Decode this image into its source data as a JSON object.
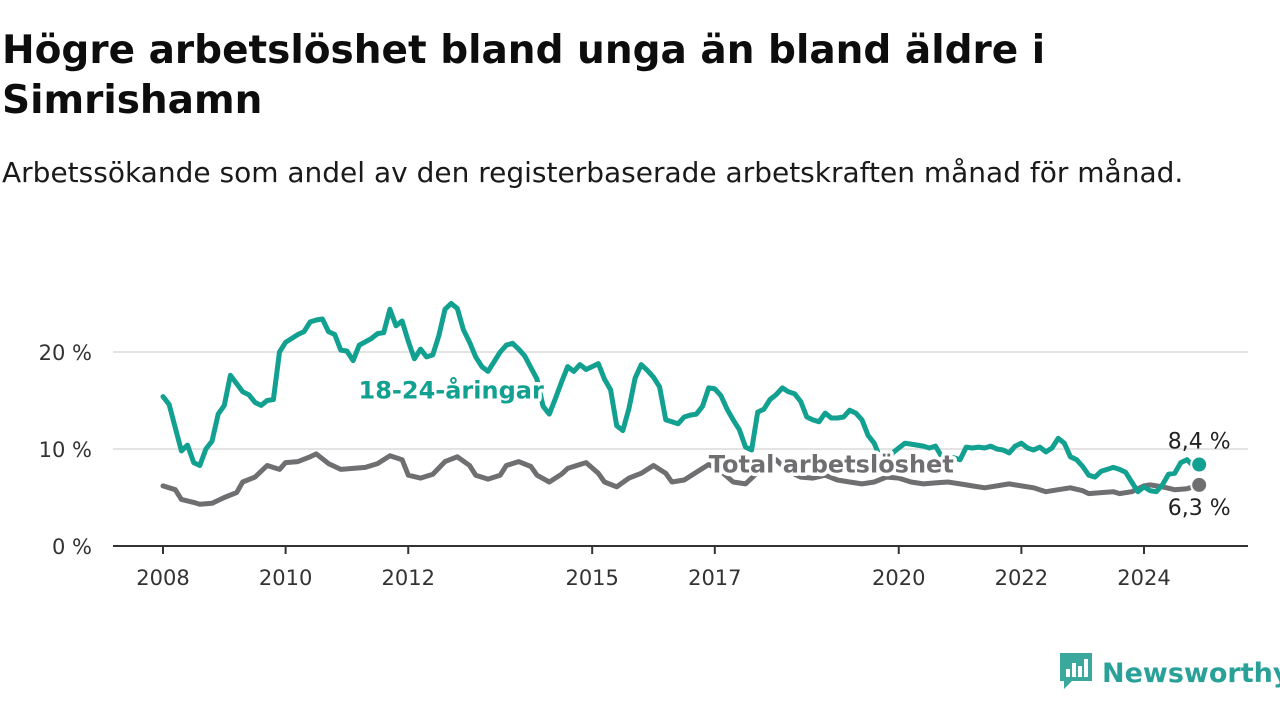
{
  "title": "Högre arbetslöshet bland unga än bland äldre i Simrishamn",
  "subtitle": "Arbetssökande som andel av den registerbaserade arbetskraften månad för månad.",
  "brand": {
    "name": "Newsworthy",
    "color": "#3aa89c",
    "icon": "bar-chart-badge-icon"
  },
  "chart_data": {
    "type": "line",
    "xlim": [
      2007.9,
      2025.1
    ],
    "ylim": [
      0,
      21
    ],
    "grid": "horizontal",
    "x_ticks": [
      {
        "value": 2008,
        "label": "2008"
      },
      {
        "value": 2010,
        "label": "2010"
      },
      {
        "value": 2012,
        "label": "2012"
      },
      {
        "value": 2015,
        "label": "2015"
      },
      {
        "value": 2017,
        "label": "2017"
      },
      {
        "value": 2020,
        "label": "2020"
      },
      {
        "value": 2022,
        "label": "2022"
      },
      {
        "value": 2024,
        "label": "2024"
      }
    ],
    "y_ticks": [
      {
        "value": 0,
        "label": "0 %"
      },
      {
        "value": 10,
        "label": "10 %"
      },
      {
        "value": 20,
        "label": "20 %"
      }
    ],
    "series": [
      {
        "name": "18-24-åringar",
        "color": "#12a090",
        "label_at": [
          2012.7,
          15.2
        ],
        "end_label": "8,4 %",
        "points": [
          [
            2008.0,
            15.4
          ],
          [
            2008.1,
            14.6
          ],
          [
            2008.3,
            9.8
          ],
          [
            2008.4,
            10.4
          ],
          [
            2008.5,
            8.6
          ],
          [
            2008.6,
            8.3
          ],
          [
            2008.7,
            10.0
          ],
          [
            2008.8,
            10.8
          ],
          [
            2008.9,
            13.6
          ],
          [
            2009.0,
            14.5
          ],
          [
            2009.1,
            17.6
          ],
          [
            2009.3,
            15.9
          ],
          [
            2009.4,
            15.6
          ],
          [
            2009.5,
            14.8
          ],
          [
            2009.6,
            14.5
          ],
          [
            2009.7,
            15.0
          ],
          [
            2009.8,
            15.1
          ],
          [
            2009.9,
            20.0
          ],
          [
            2010.0,
            21.0
          ],
          [
            2010.2,
            21.8
          ],
          [
            2010.3,
            22.1
          ],
          [
            2010.4,
            23.1
          ],
          [
            2010.5,
            23.3
          ],
          [
            2010.6,
            23.4
          ],
          [
            2010.7,
            22.1
          ],
          [
            2010.8,
            21.8
          ],
          [
            2010.9,
            20.2
          ],
          [
            2011.0,
            20.1
          ],
          [
            2011.1,
            19.1
          ],
          [
            2011.2,
            20.7
          ],
          [
            2011.4,
            21.4
          ],
          [
            2011.5,
            21.9
          ],
          [
            2011.6,
            22.0
          ],
          [
            2011.7,
            24.4
          ],
          [
            2011.8,
            22.7
          ],
          [
            2011.9,
            23.2
          ],
          [
            2012.0,
            21.1
          ],
          [
            2012.1,
            19.3
          ],
          [
            2012.2,
            20.3
          ],
          [
            2012.3,
            19.5
          ],
          [
            2012.4,
            19.7
          ],
          [
            2012.5,
            21.7
          ],
          [
            2012.6,
            24.4
          ],
          [
            2012.7,
            25.0
          ],
          [
            2012.8,
            24.5
          ],
          [
            2012.9,
            22.3
          ],
          [
            2013.0,
            21.0
          ],
          [
            2013.1,
            19.5
          ],
          [
            2013.2,
            18.5
          ],
          [
            2013.3,
            18.0
          ],
          [
            2013.5,
            20.0
          ],
          [
            2013.6,
            20.7
          ],
          [
            2013.7,
            20.9
          ],
          [
            2013.8,
            20.3
          ],
          [
            2013.9,
            19.6
          ],
          [
            2014.1,
            17.2
          ],
          [
            2014.2,
            14.4
          ],
          [
            2014.3,
            13.6
          ],
          [
            2014.4,
            15.2
          ],
          [
            2014.5,
            16.9
          ],
          [
            2014.6,
            18.5
          ],
          [
            2014.7,
            18.0
          ],
          [
            2014.8,
            18.7
          ],
          [
            2014.9,
            18.2
          ],
          [
            2015.0,
            18.5
          ],
          [
            2015.1,
            18.8
          ],
          [
            2015.2,
            17.2
          ],
          [
            2015.3,
            16.1
          ],
          [
            2015.4,
            12.4
          ],
          [
            2015.5,
            11.9
          ],
          [
            2015.6,
            14.2
          ],
          [
            2015.7,
            17.3
          ],
          [
            2015.8,
            18.7
          ],
          [
            2015.9,
            18.1
          ],
          [
            2016.0,
            17.4
          ],
          [
            2016.1,
            16.4
          ],
          [
            2016.2,
            13.0
          ],
          [
            2016.3,
            12.8
          ],
          [
            2016.4,
            12.6
          ],
          [
            2016.5,
            13.3
          ],
          [
            2016.6,
            13.5
          ],
          [
            2016.7,
            13.6
          ],
          [
            2016.8,
            14.4
          ],
          [
            2016.9,
            16.3
          ],
          [
            2017.0,
            16.2
          ],
          [
            2017.1,
            15.5
          ],
          [
            2017.2,
            14.1
          ],
          [
            2017.3,
            13.0
          ],
          [
            2017.4,
            12.0
          ],
          [
            2017.5,
            10.2
          ],
          [
            2017.6,
            9.9
          ],
          [
            2017.7,
            13.8
          ],
          [
            2017.8,
            14.1
          ],
          [
            2017.9,
            15.1
          ],
          [
            2018.0,
            15.6
          ],
          [
            2018.1,
            16.3
          ],
          [
            2018.2,
            15.9
          ],
          [
            2018.3,
            15.7
          ],
          [
            2018.4,
            14.9
          ],
          [
            2018.5,
            13.3
          ],
          [
            2018.6,
            13.0
          ],
          [
            2018.7,
            12.8
          ],
          [
            2018.8,
            13.7
          ],
          [
            2018.9,
            13.2
          ],
          [
            2019.0,
            13.2
          ],
          [
            2019.1,
            13.3
          ],
          [
            2019.2,
            14.0
          ],
          [
            2019.3,
            13.7
          ],
          [
            2019.4,
            13.0
          ],
          [
            2019.5,
            11.4
          ],
          [
            2019.6,
            10.6
          ],
          [
            2019.7,
            9.0
          ],
          [
            2019.8,
            8.5
          ],
          [
            2019.9,
            9.6
          ],
          [
            2020.0,
            10.1
          ],
          [
            2020.1,
            10.6
          ],
          [
            2020.2,
            10.5
          ],
          [
            2020.3,
            10.4
          ],
          [
            2020.4,
            10.3
          ],
          [
            2020.5,
            10.1
          ],
          [
            2020.6,
            10.3
          ],
          [
            2020.7,
            9.2
          ],
          [
            2020.8,
            9.0
          ],
          [
            2020.9,
            9.1
          ],
          [
            2021.0,
            8.9
          ],
          [
            2021.1,
            10.2
          ],
          [
            2021.2,
            10.1
          ],
          [
            2021.3,
            10.2
          ],
          [
            2021.4,
            10.1
          ],
          [
            2021.5,
            10.3
          ],
          [
            2021.6,
            10.0
          ],
          [
            2021.7,
            9.9
          ],
          [
            2021.8,
            9.6
          ],
          [
            2021.9,
            10.3
          ],
          [
            2022.0,
            10.6
          ],
          [
            2022.1,
            10.1
          ],
          [
            2022.2,
            9.9
          ],
          [
            2022.3,
            10.2
          ],
          [
            2022.4,
            9.7
          ],
          [
            2022.5,
            10.1
          ],
          [
            2022.6,
            11.1
          ],
          [
            2022.7,
            10.6
          ],
          [
            2022.8,
            9.2
          ],
          [
            2022.9,
            8.9
          ],
          [
            2023.0,
            8.2
          ],
          [
            2023.1,
            7.3
          ],
          [
            2023.2,
            7.1
          ],
          [
            2023.3,
            7.7
          ],
          [
            2023.4,
            7.9
          ],
          [
            2023.5,
            8.1
          ],
          [
            2023.6,
            7.9
          ],
          [
            2023.7,
            7.6
          ],
          [
            2023.8,
            6.6
          ],
          [
            2023.9,
            5.6
          ],
          [
            2024.0,
            6.1
          ],
          [
            2024.1,
            5.7
          ],
          [
            2024.2,
            5.6
          ],
          [
            2024.3,
            6.3
          ],
          [
            2024.4,
            7.4
          ],
          [
            2024.5,
            7.5
          ],
          [
            2024.6,
            8.6
          ],
          [
            2024.7,
            8.9
          ],
          [
            2024.8,
            8.3
          ],
          [
            2024.9,
            8.4
          ]
        ]
      },
      {
        "name": "Total arbetslöshet",
        "color": "#6f6f72",
        "label_at": [
          2018.9,
          7.6
        ],
        "end_label": "6,3 %",
        "points": [
          [
            2008.0,
            6.2
          ],
          [
            2008.2,
            5.8
          ],
          [
            2008.3,
            4.8
          ],
          [
            2008.5,
            4.5
          ],
          [
            2008.6,
            4.3
          ],
          [
            2008.8,
            4.4
          ],
          [
            2008.9,
            4.7
          ],
          [
            2009.0,
            5.0
          ],
          [
            2009.2,
            5.5
          ],
          [
            2009.3,
            6.6
          ],
          [
            2009.5,
            7.1
          ],
          [
            2009.7,
            8.3
          ],
          [
            2009.9,
            7.9
          ],
          [
            2010.0,
            8.6
          ],
          [
            2010.2,
            8.7
          ],
          [
            2010.4,
            9.2
          ],
          [
            2010.5,
            9.5
          ],
          [
            2010.7,
            8.5
          ],
          [
            2010.9,
            7.9
          ],
          [
            2011.1,
            8.0
          ],
          [
            2011.3,
            8.1
          ],
          [
            2011.5,
            8.5
          ],
          [
            2011.7,
            9.3
          ],
          [
            2011.9,
            8.9
          ],
          [
            2012.0,
            7.3
          ],
          [
            2012.2,
            7.0
          ],
          [
            2012.4,
            7.4
          ],
          [
            2012.6,
            8.7
          ],
          [
            2012.8,
            9.2
          ],
          [
            2013.0,
            8.3
          ],
          [
            2013.1,
            7.3
          ],
          [
            2013.3,
            6.9
          ],
          [
            2013.5,
            7.3
          ],
          [
            2013.6,
            8.3
          ],
          [
            2013.8,
            8.7
          ],
          [
            2014.0,
            8.2
          ],
          [
            2014.1,
            7.3
          ],
          [
            2014.3,
            6.6
          ],
          [
            2014.5,
            7.4
          ],
          [
            2014.6,
            8.0
          ],
          [
            2014.8,
            8.4
          ],
          [
            2014.9,
            8.6
          ],
          [
            2015.1,
            7.5
          ],
          [
            2015.2,
            6.6
          ],
          [
            2015.4,
            6.1
          ],
          [
            2015.6,
            7.0
          ],
          [
            2015.8,
            7.5
          ],
          [
            2016.0,
            8.3
          ],
          [
            2016.2,
            7.5
          ],
          [
            2016.3,
            6.6
          ],
          [
            2016.5,
            6.8
          ],
          [
            2016.7,
            7.6
          ],
          [
            2016.9,
            8.4
          ],
          [
            2017.1,
            7.7
          ],
          [
            2017.3,
            6.6
          ],
          [
            2017.5,
            6.4
          ],
          [
            2017.7,
            7.6
          ],
          [
            2017.9,
            8.3
          ],
          [
            2018.0,
            8.9
          ],
          [
            2018.2,
            7.7
          ],
          [
            2018.4,
            7.1
          ],
          [
            2018.6,
            7.0
          ],
          [
            2018.8,
            7.3
          ],
          [
            2019.0,
            6.8
          ],
          [
            2019.2,
            6.6
          ],
          [
            2019.4,
            6.4
          ],
          [
            2019.6,
            6.6
          ],
          [
            2019.8,
            7.1
          ],
          [
            2020.0,
            7.0
          ],
          [
            2020.2,
            6.6
          ],
          [
            2020.4,
            6.4
          ],
          [
            2020.6,
            6.5
          ],
          [
            2020.8,
            6.6
          ],
          [
            2021.0,
            6.4
          ],
          [
            2021.2,
            6.2
          ],
          [
            2021.4,
            6.0
          ],
          [
            2021.6,
            6.2
          ],
          [
            2021.8,
            6.4
          ],
          [
            2022.0,
            6.2
          ],
          [
            2022.2,
            6.0
          ],
          [
            2022.4,
            5.6
          ],
          [
            2022.6,
            5.8
          ],
          [
            2022.8,
            6.0
          ],
          [
            2023.0,
            5.7
          ],
          [
            2023.1,
            5.4
          ],
          [
            2023.3,
            5.5
          ],
          [
            2023.5,
            5.6
          ],
          [
            2023.6,
            5.4
          ],
          [
            2023.8,
            5.6
          ],
          [
            2024.0,
            6.2
          ],
          [
            2024.1,
            6.3
          ],
          [
            2024.3,
            6.1
          ],
          [
            2024.5,
            5.8
          ],
          [
            2024.7,
            5.9
          ],
          [
            2024.9,
            6.3
          ]
        ]
      }
    ]
  }
}
